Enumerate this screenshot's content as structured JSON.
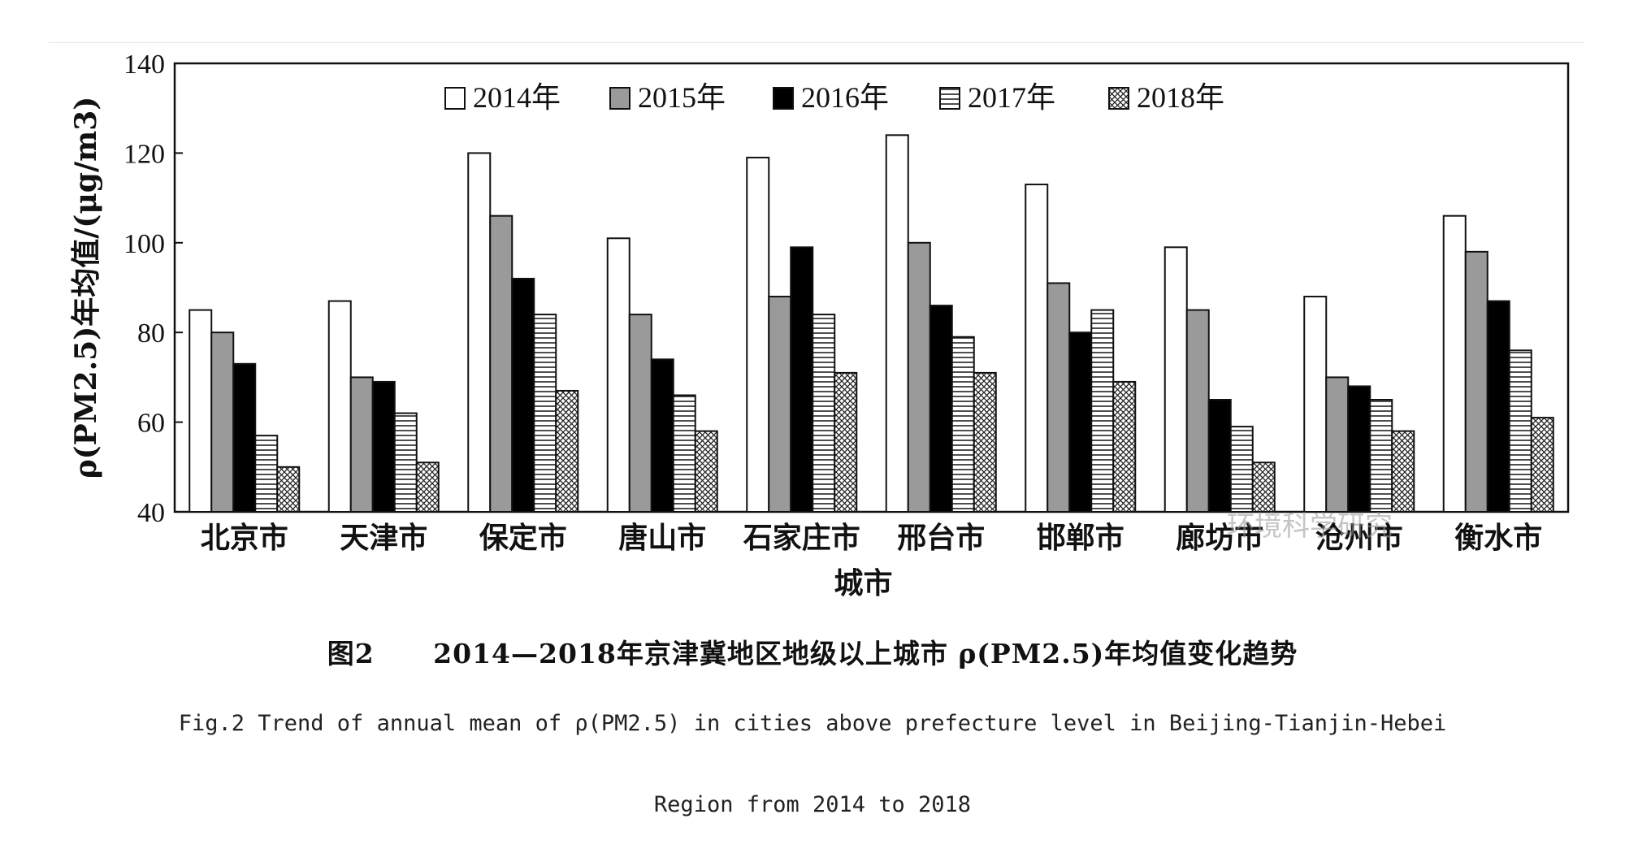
{
  "chart_data": {
    "type": "bar",
    "ylabel": "ρ(PM2.5)年均值/(μg/m3)",
    "xlabel": "城市",
    "ylim": [
      40,
      140
    ],
    "yticks": [
      40,
      60,
      80,
      100,
      120,
      140
    ],
    "legend_position": "top",
    "categories": [
      "北京市",
      "天津市",
      "保定市",
      "唐山市",
      "石家庄市",
      "邢台市",
      "邯郸市",
      "廊坊市",
      "沧州市",
      "衡水市"
    ],
    "series": [
      {
        "name": "2014年",
        "fill": "#ffffff",
        "pattern": "white",
        "values": [
          85,
          87,
          120,
          101,
          119,
          124,
          113,
          99,
          88,
          106
        ]
      },
      {
        "name": "2015年",
        "fill": "#9a9a9a",
        "pattern": "gray",
        "values": [
          80,
          70,
          106,
          84,
          88,
          100,
          91,
          85,
          70,
          98
        ]
      },
      {
        "name": "2016年",
        "fill": "#000000",
        "pattern": "black",
        "values": [
          73,
          69,
          92,
          74,
          99,
          86,
          80,
          65,
          68,
          87
        ]
      },
      {
        "name": "2017年",
        "fill": "#ffffff",
        "pattern": "hlines",
        "values": [
          57,
          62,
          84,
          66,
          84,
          79,
          85,
          59,
          65,
          76
        ]
      },
      {
        "name": "2018年",
        "fill": "#ffffff",
        "pattern": "crosshatch",
        "values": [
          50,
          51,
          67,
          58,
          71,
          71,
          69,
          51,
          58,
          61
        ]
      }
    ]
  },
  "caption": {
    "cn_fig_no": "图2",
    "cn_title": "2014—2018年京津冀地区地级以上城市 ρ(PM2.5)年均值变化趋势",
    "en_line1": "Fig.2 Trend of annual mean of  ρ(PM2.5)  in cities above prefecture level in Beijing-Tianjin-Hebei",
    "en_line2": "Region from 2014 to 2018"
  },
  "watermark": "环境科学研究"
}
